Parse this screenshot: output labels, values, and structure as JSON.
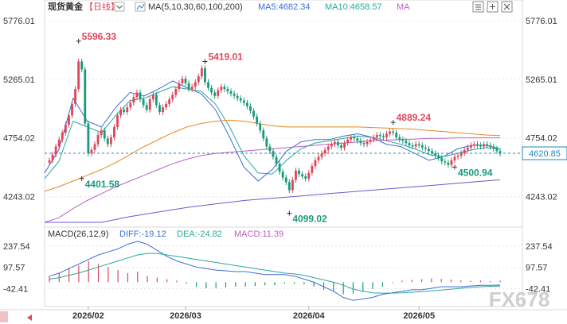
{
  "header": {
    "title": "现货黄金",
    "period": "【日线】",
    "ma_label": "MA(5,10,30,60,100,200)",
    "ma5_label": "MA5:4682.34",
    "ma10_label": "MA10:4658.57",
    "ma_extra_label": "MA"
  },
  "macd_header": {
    "label": "MACD(26,12,9)",
    "diff_label": "DIFF:-19.12",
    "dea_label": "DEA:-24.82",
    "macd_label": "MACD:11.39"
  },
  "colors": {
    "up": "#e0465a",
    "down": "#1a9a7a",
    "ma5": "#3a6fd8",
    "ma10": "#2aa89a",
    "ma30": "#e8871e",
    "ma60": "#c05cc8",
    "ma200": "#6a5acd",
    "current_price": "#1a8ab8"
  },
  "watermark": "FX678",
  "chart_data": {
    "type": "candlestick",
    "price_ticks": [
      "5776.01",
      "5265.01",
      "4754.02",
      "4243.02"
    ],
    "price_ticks_right": [
      "5776.01",
      "5265.01",
      "4754.02",
      "4243.02"
    ],
    "ylim": [
      4020,
      5830
    ],
    "current_price": "4620.85",
    "annotations": [
      {
        "text": "5596.33",
        "value": 5596.33,
        "index": 9,
        "type": "high"
      },
      {
        "text": "4401.58",
        "value": 4401.58,
        "index": 10,
        "type": "low"
      },
      {
        "text": "5419.01",
        "value": 5419.01,
        "index": 48,
        "type": "high"
      },
      {
        "text": "4099.02",
        "value": 4099.02,
        "index": 74,
        "type": "low"
      },
      {
        "text": "4889.24",
        "value": 4889.24,
        "index": 106,
        "type": "high"
      },
      {
        "text": "4500.94",
        "value": 4500.94,
        "index": 125,
        "type": "low"
      }
    ],
    "x_dates": [
      {
        "text": "2026/02",
        "index": 12
      },
      {
        "text": "2026/03",
        "index": 42
      },
      {
        "text": "2026/04",
        "index": 80
      },
      {
        "text": "2026/05",
        "index": 114
      }
    ],
    "closes": [
      4560,
      4610,
      4680,
      4740,
      4800,
      4870,
      4950,
      5050,
      5180,
      5420,
      5350,
      4880,
      4620,
      4650,
      4700,
      4780,
      4820,
      4750,
      4700,
      4760,
      4850,
      4950,
      5000,
      4980,
      5020,
      5060,
      5110,
      5150,
      5090,
      5040,
      5000,
      5090,
      5130,
      5040,
      4980,
      5020,
      5050,
      5090,
      5130,
      5180,
      5230,
      5270,
      5230,
      5180,
      5200,
      5240,
      5290,
      5360,
      5240,
      5190,
      5150,
      5120,
      5170,
      5200,
      5180,
      5160,
      5140,
      5120,
      5100,
      5080,
      5060,
      5030,
      4990,
      4940,
      4880,
      4820,
      4750,
      4680,
      4640,
      4590,
      4530,
      4460,
      4410,
      4370,
      4300,
      4390,
      4470,
      4440,
      4420,
      4400,
      4450,
      4510,
      4560,
      4590,
      4620,
      4650,
      4680,
      4700,
      4720,
      4690,
      4670,
      4710,
      4740,
      4760,
      4750,
      4730,
      4710,
      4700,
      4720,
      4740,
      4760,
      4780,
      4770,
      4760,
      4790,
      4810,
      4800,
      4760,
      4740,
      4730,
      4710,
      4690,
      4680,
      4700,
      4690,
      4670,
      4660,
      4640,
      4620,
      4600,
      4580,
      4550,
      4540,
      4520,
      4560,
      4590,
      4600,
      4620,
      4650,
      4670,
      4690,
      4700,
      4690,
      4680,
      4700,
      4690,
      4680,
      4660,
      4640,
      4620
    ],
    "ma_lines": {
      "ma5": {
        "start": 4450,
        "points": [
          4450,
          4650,
          5100,
          4900,
          4850,
          5020,
          5150,
          5120,
          5180,
          5250,
          5190,
          5140,
          5000,
          4760,
          4500,
          4380,
          4480,
          4640,
          4720,
          4740,
          4740,
          4770,
          4790,
          4760,
          4700,
          4680,
          4620,
          4560,
          4590,
          4660,
          4690,
          4690,
          4660
        ]
      },
      "ma10": {
        "start": 4400,
        "points": [
          4400,
          4550,
          4900,
          4850,
          4800,
          4950,
          5080,
          5100,
          5150,
          5200,
          5180,
          5160,
          5050,
          4850,
          4600,
          4450,
          4440,
          4560,
          4660,
          4710,
          4730,
          4750,
          4770,
          4760,
          4730,
          4700,
          4660,
          4610,
          4590,
          4620,
          4650,
          4670,
          4660
        ]
      },
      "ma30": {
        "start": 4290,
        "points": [
          4290,
          4330,
          4380,
          4430,
          4480,
          4540,
          4610,
          4680,
          4740,
          4800,
          4850,
          4880,
          4900,
          4910,
          4900,
          4880,
          4860,
          4850,
          4850,
          4850,
          4850,
          4850,
          4850,
          4845,
          4840,
          4835,
          4830,
          4820,
          4810,
          4800,
          4790,
          4780,
          4775
        ]
      },
      "ma60": {
        "start": 4000,
        "points": [
          3990,
          4060,
          4140,
          4210,
          4270,
          4330,
          4380,
          4430,
          4480,
          4530,
          4570,
          4600,
          4620,
          4630,
          4640,
          4650,
          4660,
          4670,
          4680,
          4690,
          4700,
          4710,
          4720,
          4730,
          4735,
          4740,
          4745,
          4750,
          4750,
          4755,
          4755,
          4755,
          4755
        ]
      },
      "ma200": {
        "start": 3900,
        "points": [
          3900,
          3930,
          3960,
          3990,
          4020,
          4045,
          4070,
          4090,
          4110,
          4130,
          4150,
          4165,
          4180,
          4195,
          4210,
          4220,
          4230,
          4240,
          4250,
          4260,
          4270,
          4280,
          4290,
          4300,
          4310,
          4320,
          4330,
          4340,
          4350,
          4360,
          4370,
          4380,
          4390
        ]
      }
    },
    "macd": {
      "ticks": [
        "237.54",
        "97.57",
        "-42.41"
      ],
      "ylim": [
        -150,
        290
      ],
      "diff": [
        40,
        60,
        90,
        120,
        150,
        180,
        200,
        220,
        250,
        270,
        250,
        210,
        170,
        140,
        120,
        100,
        90,
        80,
        75,
        70,
        70,
        60,
        50,
        50,
        50,
        40,
        20,
        0,
        -30,
        -60,
        -100,
        -120,
        -110,
        -100,
        -80,
        -70,
        -60,
        -50,
        -50,
        -40,
        -30,
        -30,
        -30,
        -25,
        -20,
        -20,
        -19
      ],
      "dea": [
        20,
        30,
        45,
        60,
        80,
        100,
        120,
        140,
        160,
        180,
        190,
        190,
        180,
        170,
        160,
        150,
        140,
        130,
        120,
        110,
        100,
        90,
        80,
        70,
        60,
        55,
        45,
        30,
        15,
        0,
        -20,
        -45,
        -60,
        -70,
        -72,
        -72,
        -70,
        -66,
        -62,
        -58,
        -52,
        -46,
        -40,
        -35,
        -30,
        -27,
        -25
      ],
      "hist": [
        40,
        60,
        90,
        110,
        140,
        120,
        100,
        80,
        60,
        70,
        40,
        30,
        20,
        10,
        -10,
        -30,
        -40,
        -40,
        -35,
        -30,
        -30,
        -25,
        -20,
        -20,
        -10,
        -10,
        -15,
        -30,
        -50,
        -60,
        -80,
        -75,
        -60,
        -45,
        -30,
        -5,
        10,
        15,
        20,
        25,
        22,
        18,
        12,
        10,
        10,
        8,
        11
      ]
    }
  }
}
